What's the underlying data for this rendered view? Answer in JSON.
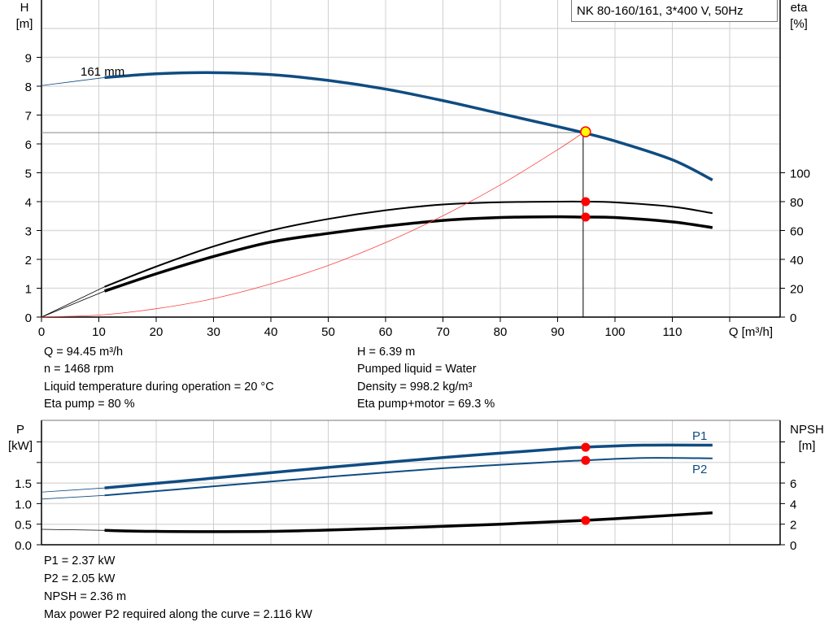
{
  "legend_title": "NK 80-160/161, 3*400 V, 50Hz",
  "colors": {
    "head": "#0f4c81",
    "eta": "#000000",
    "system": "#ff4040",
    "marker": "#ff0000",
    "op_marker": "#ffff00"
  },
  "chart_data": [
    {
      "type": "line",
      "xlabel": "Q [m³/h]",
      "ylabel_left": [
        "H",
        "[m]"
      ],
      "ylabel_right": [
        "eta",
        "[%]"
      ],
      "xlim": [
        0,
        120
      ],
      "ylim_left": [
        0,
        11
      ],
      "ylim_right": [
        0,
        220
      ],
      "x_ticks": [
        0,
        10,
        20,
        30,
        40,
        50,
        60,
        70,
        80,
        90,
        100,
        110
      ],
      "y_ticks_left": [
        0,
        1,
        2,
        3,
        4,
        5,
        6,
        7,
        8,
        9
      ],
      "y_ticks_right": [
        0,
        20,
        40,
        60,
        80,
        100
      ],
      "grid": true,
      "annotation": "161 mm",
      "operating_point": {
        "Q": 94.45,
        "H": 6.39,
        "eta_pump": 80,
        "eta_pump_motor": 69.3
      },
      "series": [
        {
          "key": "head",
          "axis": "left",
          "x": [
            0,
            11,
            20,
            30,
            40,
            50,
            60,
            70,
            80,
            90,
            94.45,
            100,
            110,
            117
          ],
          "y": [
            8.02,
            8.3,
            8.43,
            8.47,
            8.4,
            8.2,
            7.9,
            7.5,
            7.05,
            6.6,
            6.39,
            6.1,
            5.45,
            4.75
          ]
        },
        {
          "key": "eta_pump",
          "axis": "right",
          "x": [
            0,
            11,
            20,
            30,
            40,
            50,
            60,
            70,
            80,
            90,
            94.45,
            100,
            110,
            117
          ],
          "y": [
            0,
            21,
            35,
            49,
            60,
            68,
            74,
            78,
            79.6,
            80,
            80,
            79.5,
            76.5,
            72
          ]
        },
        {
          "key": "eta_pump_motor",
          "axis": "right",
          "x": [
            0,
            11,
            20,
            30,
            40,
            50,
            60,
            70,
            80,
            90,
            94.45,
            100,
            110,
            117
          ],
          "y": [
            0,
            18,
            30,
            42,
            52,
            58,
            63,
            67,
            69,
            69.5,
            69.3,
            69,
            66,
            62
          ]
        },
        {
          "key": "system_curve",
          "axis": "left",
          "x": [
            0,
            10,
            20,
            30,
            40,
            50,
            60,
            70,
            80,
            90,
            94.45
          ],
          "y": [
            0,
            0.07,
            0.29,
            0.64,
            1.15,
            1.79,
            2.58,
            3.51,
            4.58,
            5.8,
            6.39
          ]
        }
      ]
    },
    {
      "type": "line",
      "ylabel_left": [
        "P",
        "[kW]"
      ],
      "ylabel_right": [
        "NPSH",
        "[m]"
      ],
      "xlim": [
        0,
        120
      ],
      "ylim_left": [
        0,
        2.6
      ],
      "ylim_right": [
        0,
        10.4
      ],
      "y_ticks_left": [
        "0.0",
        "0.5",
        "1.0",
        "1.5"
      ],
      "y_ticks_right": [
        0,
        2,
        4,
        6
      ],
      "grid": true,
      "operating_point": {
        "Q": 94.45,
        "P1": 2.37,
        "P2": 2.05,
        "NPSH": 2.36
      },
      "series": [
        {
          "key": "P1",
          "name": "P1",
          "axis": "left",
          "x": [
            0,
            11,
            30,
            50,
            70,
            90,
            94.45,
            105,
            117
          ],
          "y": [
            1.28,
            1.38,
            1.62,
            1.88,
            2.12,
            2.33,
            2.37,
            2.42,
            2.42
          ]
        },
        {
          "key": "P2",
          "name": "P2",
          "axis": "left",
          "x": [
            0,
            11,
            30,
            50,
            70,
            90,
            94.45,
            105,
            117
          ],
          "y": [
            1.11,
            1.2,
            1.42,
            1.65,
            1.86,
            2.02,
            2.05,
            2.11,
            2.1
          ]
        },
        {
          "key": "NPSH",
          "axis": "right",
          "x": [
            0,
            11,
            20,
            40,
            60,
            80,
            94.45,
            105,
            117
          ],
          "y": [
            1.5,
            1.4,
            1.3,
            1.3,
            1.6,
            2.0,
            2.36,
            2.7,
            3.1
          ]
        }
      ]
    }
  ],
  "info_top": {
    "col1": [
      "Q = 94.45 m³/h",
      "n = 1468 rpm",
      "Liquid temperature during operation = 20 °C",
      "Eta pump = 80 %"
    ],
    "col2": [
      "H = 6.39 m",
      "Pumped liquid = Water",
      "Density = 998.2 kg/m³",
      "Eta pump+motor = 69.3 %"
    ]
  },
  "info_bottom": [
    "P1 = 2.37 kW",
    "P2 = 2.05 kW",
    "NPSH = 2.36 m",
    "Max power P2 required along the curve = 2.116 kW"
  ]
}
